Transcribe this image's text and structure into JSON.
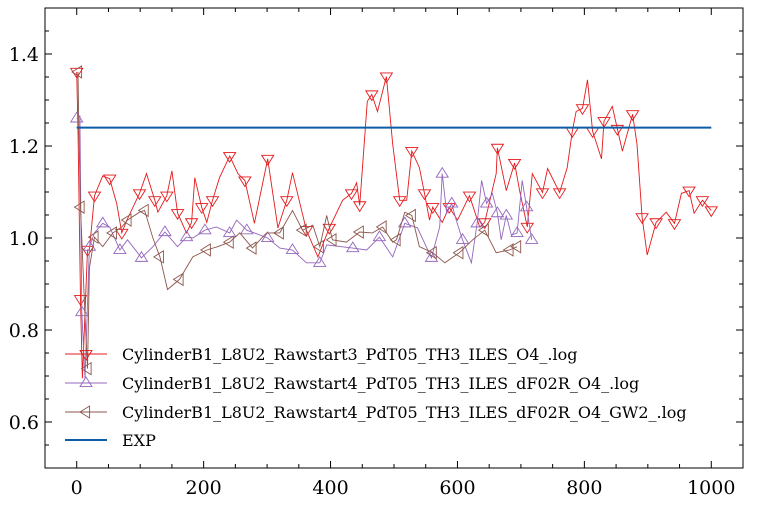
{
  "chart_data": {
    "type": "line",
    "title": "",
    "xlabel": "",
    "ylabel": "",
    "xlim": [
      -50,
      1050
    ],
    "ylim": [
      0.5,
      1.5
    ],
    "xticks": [
      "0",
      "200",
      "400",
      "600",
      "800",
      "1000"
    ],
    "xtick_values": [
      0,
      200,
      400,
      600,
      800,
      1000
    ],
    "yticks": [
      "0.6",
      "0.8",
      "1.0",
      "1.2",
      "1.4"
    ],
    "ytick_values": [
      0.6,
      0.8,
      1.0,
      1.2,
      1.4
    ],
    "grid": false,
    "legend_position": "bottom-left",
    "series": [
      {
        "name": "CylinderB1_L8U2_Rawstart3_PdT05_TH3_ILES_O4_.log",
        "color": "#e41a1c",
        "marker": "triangle-down",
        "x": [
          0,
          2,
          6,
          9,
          17,
          20,
          28,
          41,
          52,
          63,
          71,
          79,
          99,
          110,
          123,
          128,
          142,
          150,
          159,
          173,
          181,
          186,
          197,
          205,
          214,
          225,
          241,
          254,
          265,
          280,
          301,
          317,
          331,
          340,
          362,
          380,
          398,
          419,
          433,
          441,
          446,
          458,
          465,
          474,
          488,
          498,
          509,
          520,
          528,
          540,
          548,
          556,
          561,
          576,
          587,
          600,
          619,
          635,
          643,
          661,
          663,
          677,
          690,
          698,
          710,
          718,
          734,
          742,
          761,
          773,
          781,
          787,
          797,
          805,
          813,
          827,
          831,
          844,
          852,
          860,
          876,
          883,
          891,
          899,
          913,
          929,
          942,
          953,
          965,
          973,
          986,
          1000
        ],
        "y": [
          1.361,
          1.232,
          0.867,
          0.695,
          0.974,
          0.974,
          1.092,
          1.135,
          1.129,
          1.075,
          1.011,
          1.039,
          1.097,
          1.14,
          1.082,
          1.056,
          1.092,
          1.146,
          1.054,
          1.011,
          1.034,
          1.131,
          1.067,
          1.034,
          1.082,
          1.131,
          1.178,
          1.14,
          1.125,
          1.032,
          1.172,
          1.022,
          1.082,
          1.142,
          1.017,
          0.959,
          1.022,
          1.082,
          1.097,
          1.12,
          1.071,
          1.297,
          1.312,
          1.275,
          1.351,
          1.204,
          1.082,
          1.082,
          1.189,
          1.153,
          1.097,
          1.039,
          1.067,
          1.034,
          1.067,
          1.039,
          1.092,
          1.024,
          1.034,
          1.14,
          1.196,
          1.103,
          1.163,
          1.103,
          1.024,
          1.14,
          1.099,
          1.151,
          1.099,
          1.153,
          1.232,
          1.275,
          1.282,
          1.344,
          1.232,
          1.172,
          1.254,
          1.286,
          1.237,
          1.189,
          1.269,
          1.204,
          1.045,
          0.963,
          1.034,
          1.056,
          1.032,
          1.097,
          1.103,
          1.054,
          1.082,
          1.06
        ]
      },
      {
        "name": "CylinderB1_L8U2_Rawstart4_PdT05_TH3_ILES_dF02R_O4_.log",
        "color": "#9467bd",
        "marker": "triangle-up",
        "x": [
          0,
          5,
          8,
          13,
          20,
          28,
          41,
          52,
          68,
          80,
          102,
          120,
          139,
          159,
          173,
          183,
          202,
          220,
          241,
          252,
          268,
          280,
          301,
          320,
          340,
          362,
          383,
          394,
          435,
          457,
          477,
          498,
          517,
          537,
          559,
          572,
          576,
          583,
          591,
          598,
          608,
          622,
          631,
          638,
          646,
          655,
          663,
          669,
          677,
          685,
          694,
          702,
          709,
          717
        ],
        "y": [
          1.26,
          1.265,
          0.839,
          0.695,
          0.981,
          1.011,
          1.032,
          1.024,
          0.974,
          0.996,
          0.957,
          0.981,
          1.013,
          0.981,
          1.002,
          1.0,
          1.017,
          1.024,
          1.011,
          1.039,
          1.017,
          1.011,
          1.0,
          0.978,
          0.974,
          0.946,
          0.946,
          0.985,
          0.978,
          0.974,
          1.002,
          0.959,
          1.032,
          1.022,
          0.957,
          1.024,
          1.14,
          1.054,
          1.075,
          1.039,
          0.996,
          0.946,
          1.032,
          1.125,
          1.075,
          1.097,
          1.054,
          0.996,
          1.049,
          1.006,
          1.011,
          1.125,
          1.067,
          0.996
        ]
      },
      {
        "name": "CylinderB1_L8U2_Rawstart4_PdT05_TH3_ILES_dF02R_O4_GW2_.log",
        "color": "#8c564b",
        "marker": "triangle-left",
        "x": [
          2,
          3,
          6,
          13,
          17,
          20,
          28,
          41,
          57,
          71,
          80,
          99,
          107,
          120,
          131,
          143,
          162,
          183,
          205,
          222,
          241,
          257,
          277,
          299,
          320,
          340,
          356,
          372,
          383,
          394,
          403,
          425,
          446,
          466,
          482,
          498,
          504,
          517,
          528,
          540,
          561,
          580,
          603,
          624,
          643,
          661,
          682,
          694
        ],
        "y": [
          1.361,
          1.269,
          1.067,
          0.83,
          0.716,
          0.935,
          1.002,
          0.981,
          1.011,
          1.024,
          1.039,
          1.056,
          1.06,
          1.0,
          0.959,
          0.888,
          0.91,
          0.959,
          0.974,
          0.981,
          0.991,
          1.011,
          0.978,
          1.011,
          1.011,
          1.06,
          1.017,
          1.028,
          0.981,
          1.049,
          0.996,
          0.991,
          1.013,
          1.011,
          1.024,
          0.991,
          0.996,
          1.056,
          1.049,
          0.981,
          0.968,
          0.946,
          0.968,
          0.996,
          1.017,
          0.968,
          0.974,
          0.981
        ]
      },
      {
        "name": "EXP",
        "color": "#0c5da5",
        "marker": "none",
        "x": [
          0,
          1000
        ],
        "y": [
          1.24,
          1.24
        ]
      }
    ]
  }
}
